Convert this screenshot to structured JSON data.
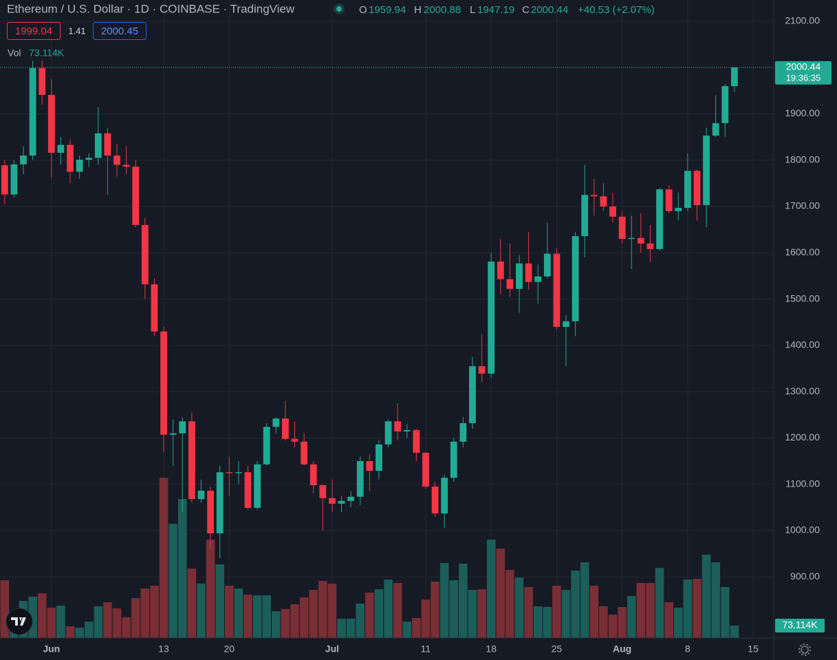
{
  "chart_data": {
    "type": "candlestick",
    "title": "Ethereum / U.S. Dollar · 1D · COINBASE · TradingView",
    "legend_labels": [
      "O",
      "H",
      "L",
      "C"
    ],
    "change_label": "+40.53 (+2.07%)",
    "bid": 1999.04,
    "spread": 1.41,
    "ask": 2000.45,
    "volume_title": "Vol",
    "volume_label": "73.114K",
    "countdown": "19:36:35",
    "up_color": "#22ab94",
    "down_color": "#f23645",
    "volume_up_color": "#1c5e59",
    "volume_down_color": "#7a2e35",
    "grid": true,
    "open": [
      1789,
      1726,
      1791,
      1810,
      1999,
      1941,
      1816,
      1833,
      1775,
      1801,
      1805,
      1858,
      1810,
      1790,
      1786,
      1660,
      1532,
      1430,
      1207,
      1210,
      1236,
      1068,
      1086,
      994,
      1126,
      1124,
      1126,
      1049,
      1143,
      1224,
      1242,
      1198,
      1192,
      1143,
      1098,
      1070,
      1058,
      1064,
      1073,
      1150,
      1129,
      1186,
      1236,
      1214,
      1217,
      1168,
      1095,
      1037,
      1114,
      1192,
      1232,
      1355,
      1339,
      1581,
      1543,
      1522,
      1577,
      1537,
      1549,
      1598,
      1440,
      1452,
      1636,
      1725,
      1722,
      1700,
      1678,
      1630,
      1632,
      1620,
      1608,
      1737,
      1690,
      1697,
      1777,
      1703,
      1853,
      1880,
      1959.94
    ],
    "high": [
      1800,
      1800,
      1830,
      2015,
      2016,
      1975,
      1850,
      1845,
      1810,
      1815,
      1915,
      1870,
      1835,
      1830,
      1800,
      1675,
      1545,
      1440,
      1240,
      1245,
      1255,
      1110,
      1095,
      1140,
      1160,
      1150,
      1140,
      1150,
      1232,
      1245,
      1280,
      1235,
      1210,
      1150,
      1100,
      1110,
      1075,
      1085,
      1160,
      1165,
      1195,
      1240,
      1275,
      1230,
      1220,
      1170,
      1105,
      1120,
      1200,
      1245,
      1375,
      1425,
      1600,
      1630,
      1620,
      1595,
      1645,
      1575,
      1665,
      1610,
      1465,
      1645,
      1790,
      1760,
      1750,
      1730,
      1690,
      1680,
      1685,
      1660,
      1740,
      1745,
      1730,
      1815,
      1780,
      1870,
      1940,
      1965,
      2000.88
    ],
    "low": [
      1705,
      1719,
      1770,
      1800,
      1920,
      1763,
      1790,
      1750,
      1760,
      1785,
      1790,
      1725,
      1765,
      1770,
      1655,
      1500,
      1420,
      1170,
      1140,
      1040,
      1060,
      1060,
      960,
      940,
      1075,
      1100,
      1045,
      1045,
      1140,
      1210,
      1195,
      1180,
      1140,
      1080,
      1000,
      1040,
      1040,
      1050,
      1055,
      1085,
      1110,
      1180,
      1195,
      1200,
      1150,
      1090,
      1030,
      1006,
      1105,
      1180,
      1220,
      1320,
      1330,
      1510,
      1505,
      1470,
      1520,
      1490,
      1545,
      1435,
      1355,
      1420,
      1590,
      1680,
      1690,
      1665,
      1620,
      1565,
      1600,
      1580,
      1605,
      1685,
      1670,
      1690,
      1670,
      1655,
      1850,
      1850,
      1947.19
    ],
    "close": [
      1726,
      1791,
      1810,
      1999,
      1941,
      1816,
      1833,
      1775,
      1801,
      1805,
      1858,
      1810,
      1790,
      1786,
      1660,
      1532,
      1430,
      1207,
      1210,
      1236,
      1068,
      1086,
      994,
      1126,
      1124,
      1126,
      1049,
      1143,
      1224,
      1242,
      1198,
      1192,
      1143,
      1098,
      1070,
      1058,
      1064,
      1073,
      1150,
      1129,
      1186,
      1236,
      1214,
      1217,
      1168,
      1095,
      1037,
      1114,
      1192,
      1232,
      1355,
      1339,
      1581,
      1543,
      1522,
      1577,
      1537,
      1549,
      1598,
      1440,
      1452,
      1636,
      1725,
      1722,
      1700,
      1678,
      1630,
      1632,
      1620,
      1608,
      1737,
      1690,
      1697,
      1777,
      1703,
      1853,
      1880,
      1960,
      2000.44
    ],
    "volume": [
      341000,
      89000,
      219000,
      244000,
      264000,
      179000,
      191000,
      69000,
      61000,
      97000,
      187000,
      211000,
      175000,
      122000,
      236000,
      292000,
      309000,
      946000,
      674000,
      821000,
      410000,
      321000,
      581000,
      435000,
      309000,
      292000,
      256000,
      252000,
      252000,
      158000,
      171000,
      199000,
      240000,
      284000,
      337000,
      321000,
      114000,
      114000,
      203000,
      268000,
      288000,
      345000,
      325000,
      97000,
      118000,
      227000,
      333000,
      443000,
      341000,
      439000,
      284000,
      288000,
      581000,
      528000,
      402000,
      357000,
      301000,
      187000,
      183000,
      309000,
      284000,
      398000,
      447000,
      309000,
      187000,
      138000,
      183000,
      248000,
      325000,
      325000,
      414000,
      211000,
      179000,
      345000,
      349000,
      492000,
      447000,
      301000,
      73114
    ],
    "volume_ylim": [
      0,
      1000000
    ],
    "xlim": [
      -0.5,
      82.2
    ],
    "xticks": [
      {
        "value": 5,
        "label": "Jun"
      },
      {
        "value": 17,
        "label": "13"
      },
      {
        "value": 24,
        "label": "20"
      },
      {
        "value": 35,
        "label": "Jul"
      },
      {
        "value": 45,
        "label": "11"
      },
      {
        "value": 52,
        "label": "18"
      },
      {
        "value": 59,
        "label": "25"
      },
      {
        "value": 66,
        "label": "Aug"
      },
      {
        "value": 73,
        "label": "8"
      },
      {
        "value": 80,
        "label": "15"
      }
    ],
    "ylim": [
      768,
      2146
    ],
    "yticks": [
      {
        "value": 2100,
        "label": "2100.00"
      },
      {
        "value": 2000,
        "label": "2000.00"
      },
      {
        "value": 1900,
        "label": "1900.00"
      },
      {
        "value": 1800,
        "label": "1800.00"
      },
      {
        "value": 1700,
        "label": "1700.00"
      },
      {
        "value": 1600,
        "label": "1600.00"
      },
      {
        "value": 1500,
        "label": "1500.00"
      },
      {
        "value": 1400,
        "label": "1400.00"
      },
      {
        "value": 1300,
        "label": "1300.00"
      },
      {
        "value": 1200,
        "label": "1200.00"
      },
      {
        "value": 1100,
        "label": "1100.00"
      },
      {
        "value": 1000,
        "label": "1000.00"
      },
      {
        "value": 900,
        "label": "900.00"
      }
    ]
  }
}
